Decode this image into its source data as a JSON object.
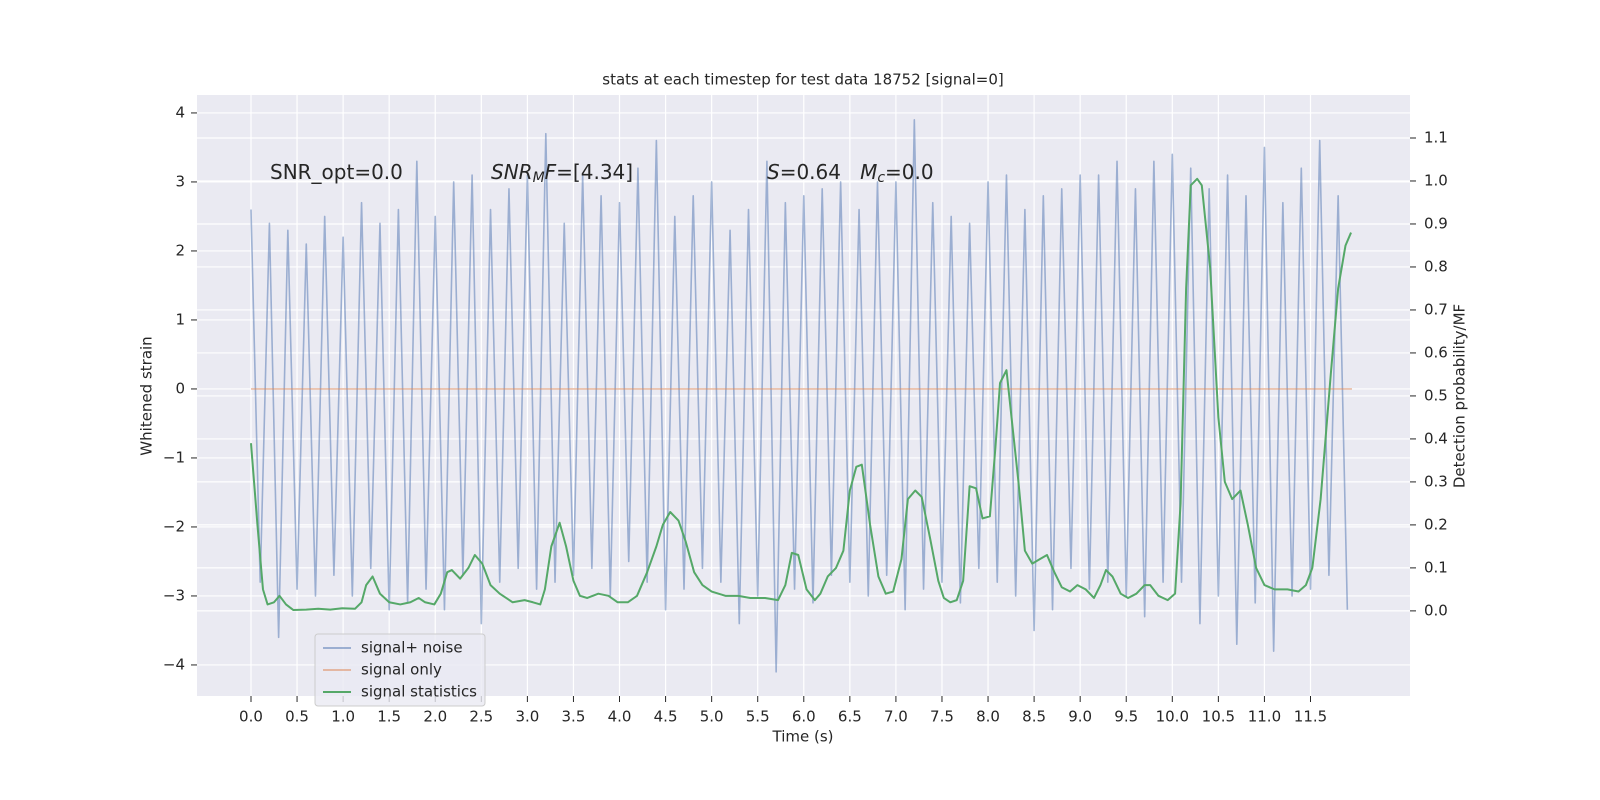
{
  "chart_data": {
    "type": "line",
    "title": "stats at each timestep for test data 18752 [signal=0]",
    "xlabel": "Time (s)",
    "ylabel": "Whitened strain",
    "y2label": "Detection probability/MF",
    "annotations": [
      [
        {
          "text": "SNR_opt=0.0",
          "italic": false,
          "sub": false
        }
      ],
      [
        {
          "text": "SNR",
          "italic": true,
          "sub": false
        },
        {
          "text": "M",
          "italic": true,
          "sub": true
        },
        {
          "text": "F",
          "italic": true,
          "sub": false
        },
        {
          "text": "=[4.34]",
          "italic": false,
          "sub": false
        }
      ],
      [
        {
          "text": "S",
          "italic": true,
          "sub": false
        },
        {
          "text": "=0.64   ",
          "italic": false,
          "sub": false
        },
        {
          "text": "M",
          "italic": true,
          "sub": false
        },
        {
          "text": "c",
          "italic": true,
          "sub": true
        },
        {
          "text": "=0.0",
          "italic": false,
          "sub": false
        }
      ]
    ],
    "xlim": [
      -0.586,
      12.58
    ],
    "ylim": [
      -4.45,
      4.26
    ],
    "y2lim": [
      -0.198,
      1.2
    ],
    "xticks": [
      {
        "value": 0,
        "label": "0.0"
      },
      {
        "value": 0.5,
        "label": "0.5"
      },
      {
        "value": 1,
        "label": "1.0"
      },
      {
        "value": 1.5,
        "label": "1.5"
      },
      {
        "value": 2,
        "label": "2.0"
      },
      {
        "value": 2.5,
        "label": "2.5"
      },
      {
        "value": 3,
        "label": "3.0"
      },
      {
        "value": 3.5,
        "label": "3.5"
      },
      {
        "value": 4,
        "label": "4.0"
      },
      {
        "value": 4.5,
        "label": "4.5"
      },
      {
        "value": 5,
        "label": "5.0"
      },
      {
        "value": 5.5,
        "label": "5.5"
      },
      {
        "value": 6,
        "label": "6.0"
      },
      {
        "value": 6.5,
        "label": "6.5"
      },
      {
        "value": 7,
        "label": "7.0"
      },
      {
        "value": 7.5,
        "label": "7.5"
      },
      {
        "value": 8,
        "label": "8.0"
      },
      {
        "value": 8.5,
        "label": "8.5"
      },
      {
        "value": 9,
        "label": "9.0"
      },
      {
        "value": 9.5,
        "label": "9.5"
      },
      {
        "value": 10,
        "label": "10.0"
      },
      {
        "value": 10.5,
        "label": "10.5"
      },
      {
        "value": 11,
        "label": "11.0"
      },
      {
        "value": 11.5,
        "label": "11.5"
      }
    ],
    "yticks": [
      {
        "value": -4,
        "label": "−4"
      },
      {
        "value": -3,
        "label": "−3"
      },
      {
        "value": -2,
        "label": "−2"
      },
      {
        "value": -1,
        "label": "−1"
      },
      0,
      1,
      2,
      3,
      4
    ],
    "y2ticks": [
      {
        "value": 0,
        "label": "0.0"
      },
      {
        "value": 0.1,
        "label": "0.1"
      },
      {
        "value": 0.2,
        "label": "0.2"
      },
      {
        "value": 0.3,
        "label": "0.3"
      },
      {
        "value": 0.4,
        "label": "0.4"
      },
      {
        "value": 0.5,
        "label": "0.5"
      },
      {
        "value": 0.6,
        "label": "0.6"
      },
      {
        "value": 0.7,
        "label": "0.7"
      },
      {
        "value": 0.8,
        "label": "0.8"
      },
      {
        "value": 0.9,
        "label": "0.9"
      },
      {
        "value": 1,
        "label": "1.0"
      },
      {
        "value": 1.1,
        "label": "1.1"
      }
    ],
    "grid": true,
    "legend": "lower left",
    "series": [
      {
        "name": "signal+ noise",
        "color": "#4c72b0",
        "alpha": 0.5,
        "x": [
          0,
          0.1,
          0.2,
          0.3,
          0.4,
          0.5,
          0.6,
          0.7,
          0.8,
          0.9,
          1,
          1.1,
          1.2,
          1.3,
          1.4,
          1.5,
          1.6,
          1.7,
          1.8,
          1.9,
          2,
          2.1,
          2.2,
          2.3,
          2.4,
          2.5,
          2.6,
          2.7,
          2.8,
          2.9,
          3,
          3.1,
          3.2,
          3.3,
          3.4,
          3.5,
          3.6,
          3.7,
          3.8,
          3.9,
          4,
          4.1,
          4.2,
          4.3,
          4.4,
          4.5,
          4.6,
          4.7,
          4.8,
          4.9,
          5,
          5.1,
          5.2,
          5.3,
          5.4,
          5.5,
          5.6,
          5.7,
          5.8,
          5.9,
          6,
          6.1,
          6.2,
          6.3,
          6.4,
          6.5,
          6.6,
          6.7,
          6.8,
          6.9,
          7,
          7.1,
          7.2,
          7.3,
          7.4,
          7.5,
          7.6,
          7.7,
          7.8,
          7.9,
          8,
          8.1,
          8.2,
          8.3,
          8.4,
          8.5,
          8.6,
          8.7,
          8.8,
          8.9,
          9,
          9.1,
          9.2,
          9.3,
          9.4,
          9.5,
          9.6,
          9.7,
          9.8,
          9.9,
          10,
          10.1,
          10.2,
          10.3,
          10.4,
          10.5,
          10.6,
          10.7,
          10.8,
          10.9,
          11,
          11.1,
          11.2,
          11.3,
          11.4,
          11.5,
          11.6,
          11.7,
          11.8,
          11.9
        ],
        "values": [
          2.6,
          -2.8,
          2.4,
          -3.6,
          2.3,
          -2.9,
          2.1,
          -3.0,
          2.5,
          -2.7,
          2.2,
          -3.0,
          2.7,
          -2.6,
          2.4,
          -3.2,
          2.6,
          -3.1,
          3.3,
          -2.9,
          2.5,
          -3.2,
          3.0,
          -2.7,
          3.1,
          -3.4,
          2.6,
          -2.8,
          2.9,
          -2.6,
          3.1,
          -2.9,
          3.7,
          -2.8,
          2.4,
          -2.7,
          3.1,
          -2.6,
          2.8,
          -3.0,
          2.7,
          -2.5,
          3.2,
          -2.8,
          3.6,
          -3.2,
          2.5,
          -2.9,
          2.8,
          -2.6,
          3.0,
          -2.8,
          2.3,
          -3.4,
          2.6,
          -3.0,
          3.3,
          -4.1,
          2.7,
          -2.9,
          2.8,
          -3.1,
          2.9,
          -2.7,
          3.0,
          -2.8,
          2.6,
          -3.0,
          3.0,
          -2.7,
          3.0,
          -3.2,
          3.9,
          -2.9,
          2.7,
          -2.8,
          2.5,
          -3.1,
          2.4,
          -2.6,
          3.0,
          -2.8,
          3.1,
          -3.0,
          2.6,
          -3.5,
          2.8,
          -3.2,
          2.9,
          -2.6,
          3.1,
          -2.9,
          3.1,
          -2.8,
          3.3,
          -3.0,
          2.9,
          -3.3,
          3.3,
          -2.8,
          3.4,
          -2.8,
          3.2,
          -3.4,
          2.9,
          -3.0,
          3.1,
          -3.7,
          2.8,
          -3.1,
          3.5,
          -3.8,
          2.7,
          -3.0,
          3.2,
          -2.9,
          3.6,
          -2.7,
          2.8,
          -3.2
        ]
      },
      {
        "name": "signal only",
        "color": "#dd8452",
        "alpha": 0.5,
        "x": [
          0,
          11.95
        ],
        "values": [
          0,
          0
        ]
      },
      {
        "name": "signal statistics",
        "color": "#55a868",
        "alpha": 1,
        "axis": "y2",
        "x": [
          0,
          0.07,
          0.13,
          0.18,
          0.25,
          0.31,
          0.38,
          0.46,
          0.6,
          0.73,
          0.86,
          0.99,
          1.13,
          1.2,
          1.25,
          1.32,
          1.4,
          1.5,
          1.62,
          1.73,
          1.82,
          1.89,
          1.99,
          2.06,
          2.13,
          2.18,
          2.27,
          2.36,
          2.43,
          2.51,
          2.6,
          2.7,
          2.84,
          2.97,
          3.06,
          3.14,
          3.19,
          3.26,
          3.35,
          3.42,
          3.5,
          3.57,
          3.65,
          3.77,
          3.88,
          3.98,
          4.09,
          4.19,
          4.3,
          4.4,
          4.47,
          4.55,
          4.64,
          4.72,
          4.81,
          4.9,
          5,
          5.15,
          5.29,
          5.42,
          5.58,
          5.72,
          5.8,
          5.87,
          5.94,
          6.03,
          6.12,
          6.18,
          6.26,
          6.35,
          6.43,
          6.5,
          6.57,
          6.63,
          6.72,
          6.81,
          6.89,
          6.97,
          7.06,
          7.13,
          7.21,
          7.28,
          7.37,
          7.46,
          7.52,
          7.59,
          7.66,
          7.73,
          7.8,
          7.87,
          7.94,
          8.02,
          8.08,
          8.13,
          8.2,
          8.26,
          8.33,
          8.4,
          8.48,
          8.56,
          8.64,
          8.72,
          8.8,
          8.89,
          8.97,
          9.06,
          9.15,
          9.22,
          9.28,
          9.35,
          9.44,
          9.52,
          9.61,
          9.7,
          9.76,
          9.85,
          9.95,
          10.03,
          10.09,
          10.15,
          10.2,
          10.27,
          10.32,
          10.41,
          10.5,
          10.57,
          10.65,
          10.74,
          10.82,
          10.91,
          11,
          11.11,
          11.25,
          11.37,
          11.45,
          11.52,
          11.61,
          11.72,
          11.8,
          11.88,
          11.94
        ],
        "values": [
          0.39,
          0.2,
          0.05,
          0.015,
          0.02,
          0.035,
          0.015,
          0.002,
          0.003,
          0.005,
          0.003,
          0.006,
          0.005,
          0.02,
          0.06,
          0.08,
          0.04,
          0.02,
          0.015,
          0.02,
          0.03,
          0.02,
          0.015,
          0.04,
          0.09,
          0.095,
          0.075,
          0.1,
          0.13,
          0.11,
          0.06,
          0.04,
          0.02,
          0.025,
          0.02,
          0.015,
          0.05,
          0.15,
          0.205,
          0.15,
          0.07,
          0.035,
          0.03,
          0.04,
          0.035,
          0.02,
          0.02,
          0.035,
          0.09,
          0.15,
          0.2,
          0.23,
          0.21,
          0.16,
          0.09,
          0.06,
          0.045,
          0.035,
          0.035,
          0.03,
          0.03,
          0.025,
          0.06,
          0.135,
          0.13,
          0.05,
          0.025,
          0.04,
          0.08,
          0.1,
          0.14,
          0.28,
          0.335,
          0.34,
          0.2,
          0.08,
          0.04,
          0.045,
          0.12,
          0.26,
          0.28,
          0.265,
          0.17,
          0.07,
          0.03,
          0.02,
          0.025,
          0.07,
          0.29,
          0.285,
          0.215,
          0.22,
          0.38,
          0.53,
          0.56,
          0.44,
          0.3,
          0.14,
          0.11,
          0.12,
          0.13,
          0.09,
          0.055,
          0.045,
          0.06,
          0.05,
          0.03,
          0.06,
          0.095,
          0.08,
          0.04,
          0.03,
          0.04,
          0.06,
          0.06,
          0.035,
          0.025,
          0.04,
          0.25,
          0.75,
          0.99,
          1.005,
          0.99,
          0.8,
          0.45,
          0.3,
          0.26,
          0.28,
          0.2,
          0.1,
          0.06,
          0.05,
          0.05,
          0.045,
          0.06,
          0.1,
          0.26,
          0.55,
          0.75,
          0.85,
          0.88
        ]
      }
    ]
  }
}
